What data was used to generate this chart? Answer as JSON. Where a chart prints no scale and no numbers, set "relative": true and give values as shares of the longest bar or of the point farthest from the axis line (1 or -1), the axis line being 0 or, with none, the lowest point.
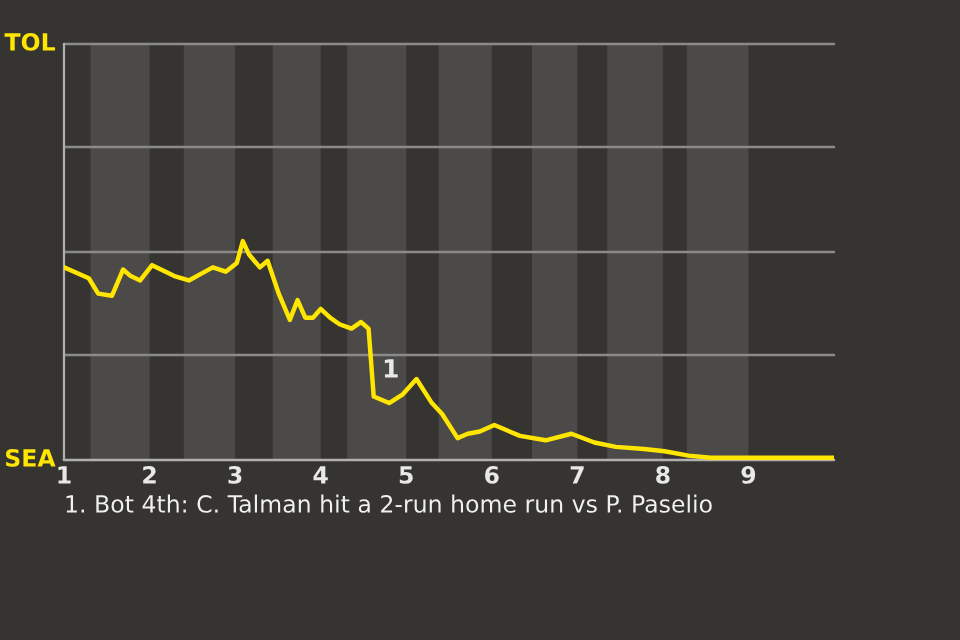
{
  "chart_data": {
    "type": "line",
    "relative": true,
    "x": [
      1.0,
      1.29,
      1.4,
      1.56,
      1.69,
      1.78,
      1.89,
      2.03,
      2.29,
      2.46,
      2.6,
      2.74,
      2.89,
      3.02,
      3.09,
      3.16,
      3.29,
      3.38,
      3.51,
      3.64,
      3.73,
      3.82,
      3.91,
      4.0,
      4.11,
      4.22,
      4.36,
      4.47,
      4.56,
      4.62,
      4.8,
      4.96,
      5.12,
      5.3,
      5.42,
      5.6,
      5.72,
      5.86,
      6.03,
      6.33,
      6.63,
      6.93,
      7.2,
      7.45,
      7.78,
      8.02,
      8.3,
      8.56,
      10.0
    ],
    "series": [
      {
        "color": "#ffe600",
        "values": [
          0.88,
          0.83,
          0.76,
          0.75,
          0.87,
          0.84,
          0.82,
          0.89,
          0.84,
          0.82,
          0.85,
          0.88,
          0.86,
          0.9,
          1,
          0.94,
          0.88,
          0.91,
          0.76,
          0.64,
          0.73,
          0.65,
          0.65,
          0.69,
          0.65,
          0.62,
          0.6,
          0.63,
          0.6,
          0.29,
          0.26,
          0.3,
          0.37,
          0.26,
          0.21,
          0.1,
          0.12,
          0.13,
          0.16,
          0.11,
          0.09,
          0.12,
          0.08,
          0.06,
          0.05,
          0.04,
          0.02,
          0.01,
          0.01
        ]
      }
    ],
    "xlim": [
      1,
      10
    ],
    "xticks": [
      1,
      2,
      3,
      4,
      5,
      6,
      7,
      8,
      9
    ],
    "ref_lines": [
      {
        "axis": "y",
        "value": 0,
        "label": "SEA",
        "color": "#b0b0b0"
      },
      {
        "axis": "y",
        "value": 0.48,
        "color": "#8a8a8a"
      },
      {
        "axis": "y",
        "value": 0.95,
        "color": "#8a8a8a"
      },
      {
        "axis": "y",
        "value": 1.43,
        "color": "#8a8a8a"
      },
      {
        "axis": "y",
        "value": 1.9,
        "label": "TOL",
        "color": "#8a8a8a"
      }
    ],
    "bands": [
      {
        "axis": "x",
        "from": 1.31,
        "to": 2.0,
        "color": "#4b4a48"
      },
      {
        "axis": "x",
        "from": 2.4,
        "to": 3.0,
        "color": "#4b4a48"
      },
      {
        "axis": "x",
        "from": 3.44,
        "to": 4.0,
        "color": "#4b4a48"
      },
      {
        "axis": "x",
        "from": 4.31,
        "to": 5.0,
        "color": "#4b4a48"
      },
      {
        "axis": "x",
        "from": 5.38,
        "to": 6.0,
        "color": "#4b4a48"
      },
      {
        "axis": "x",
        "from": 6.47,
        "to": 7.0,
        "color": "#4b4a48"
      },
      {
        "axis": "x",
        "from": 7.35,
        "to": 8.0,
        "color": "#4b4a48"
      },
      {
        "axis": "x",
        "from": 8.28,
        "to": 9.0,
        "color": "#4b4a48"
      }
    ],
    "annotations": [
      {
        "text": "1",
        "x": 4.62,
        "y": 0.29
      },
      "1. Bot 4th: C. Talman hit a 2-run home run vs P. Paselio"
    ]
  }
}
